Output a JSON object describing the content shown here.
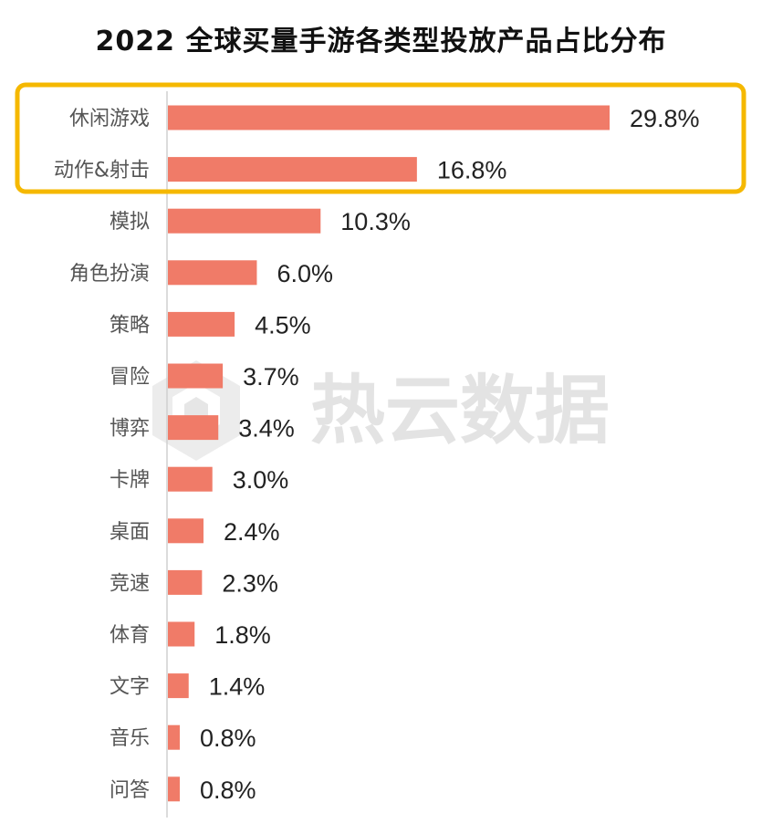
{
  "chart_data": {
    "type": "bar",
    "orientation": "horizontal",
    "title": "2022 全球买量手游各类型投放产品占比分布",
    "categories": [
      "休闲游戏",
      "动作&射击",
      "模拟",
      "角色扮演",
      "策略",
      "冒险",
      "博弈",
      "卡牌",
      "桌面",
      "竞速",
      "体育",
      "文字",
      "音乐",
      "问答"
    ],
    "values": [
      29.8,
      16.8,
      10.3,
      6.0,
      4.5,
      3.7,
      3.4,
      3.0,
      2.4,
      2.3,
      1.8,
      1.4,
      0.8,
      0.8
    ],
    "value_labels": [
      "29.8%",
      "16.8%",
      "10.3%",
      "6.0%",
      "4.5%",
      "3.7%",
      "3.4%",
      "3.0%",
      "2.4%",
      "2.3%",
      "1.8%",
      "1.4%",
      "0.8%",
      "0.8%"
    ],
    "unit": "%",
    "xlim": [
      0,
      29.8
    ],
    "grid": false,
    "legend": "none",
    "bar_color": "#f07b68",
    "highlight": {
      "categories": [
        "休闲游戏",
        "动作&射击"
      ],
      "color": "#f5b800"
    }
  },
  "watermark": {
    "text": "热云数据",
    "icon": "reyun-logo-icon"
  },
  "colors": {
    "axis": "#d0d0d0",
    "watermark": "#e3e3e3"
  }
}
